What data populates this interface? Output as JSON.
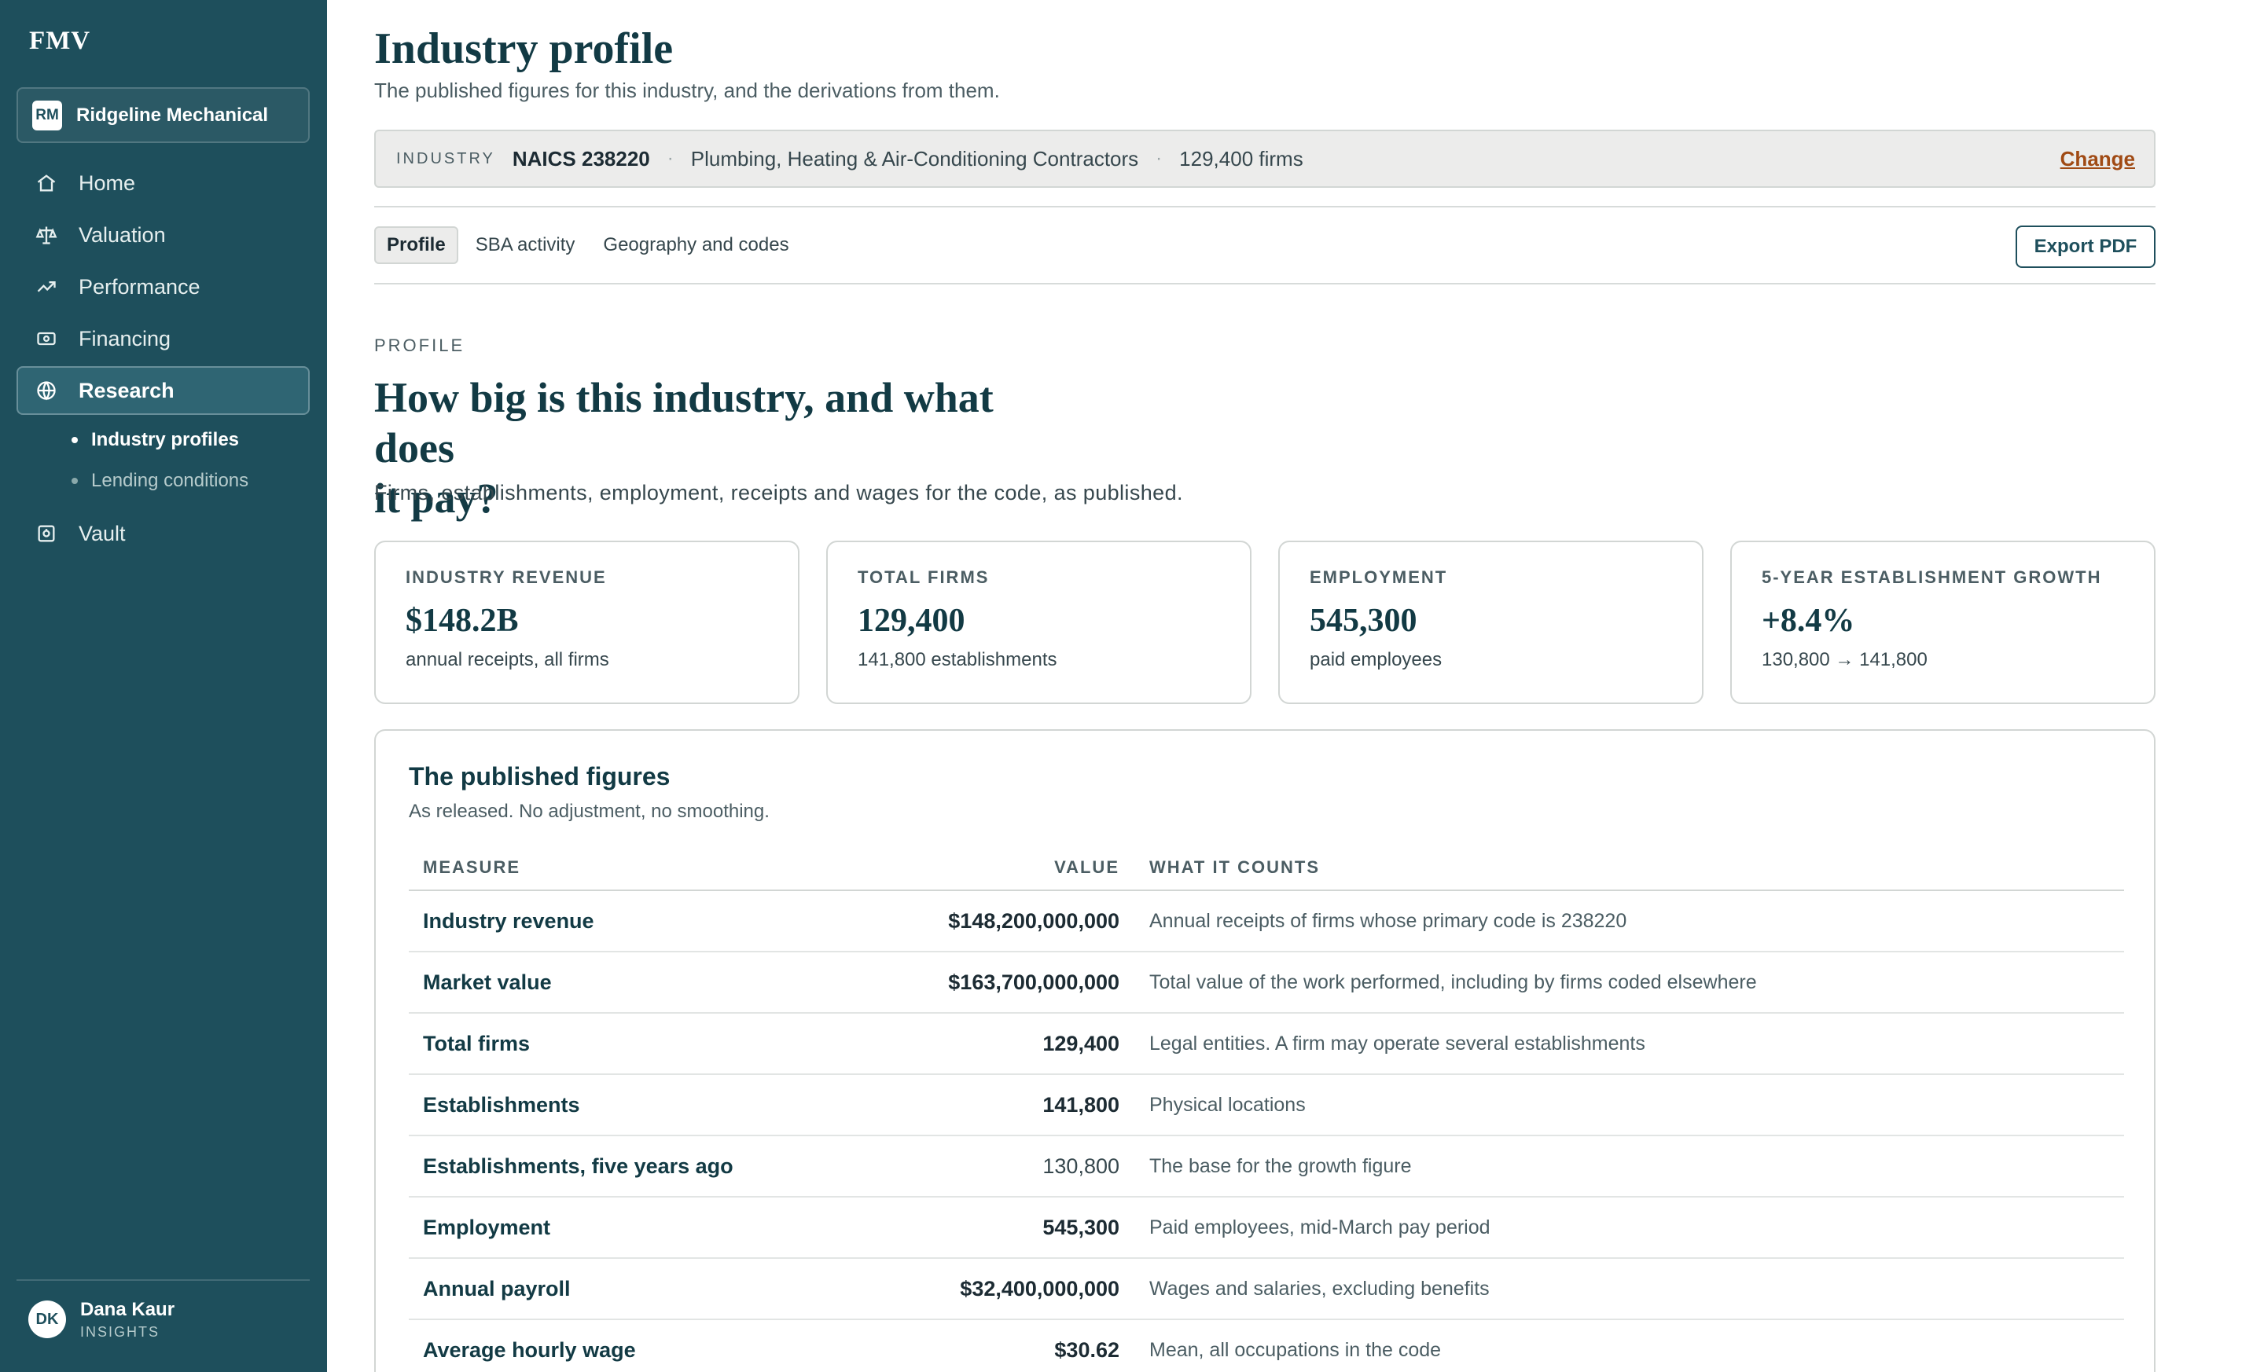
{
  "app": {
    "brand": "FMV"
  },
  "org": {
    "initials": "RM",
    "name": "Ridgeline Mechanical"
  },
  "nav": {
    "items": [
      {
        "label": "Home",
        "icon": "home-icon"
      },
      {
        "label": "Valuation",
        "icon": "scales-icon"
      },
      {
        "label": "Performance",
        "icon": "trend-icon"
      },
      {
        "label": "Financing",
        "icon": "banknote-icon"
      },
      {
        "label": "Research",
        "icon": "globe-icon",
        "active": true
      },
      {
        "label": "Vault",
        "icon": "vault-icon"
      }
    ],
    "sub_items": [
      {
        "label": "Industry profiles",
        "active": true
      },
      {
        "label": "Lending conditions"
      }
    ]
  },
  "user": {
    "initials": "DK",
    "name": "Dana Kaur",
    "role": "INSIGHTS"
  },
  "page": {
    "title": "Industry profile",
    "subtitle": "The published figures for this industry, and the derivations from them."
  },
  "industry": {
    "label": "INDUSTRY",
    "code": "NAICS 238220",
    "name": "Plumbing, Heating & Air-Conditioning Contractors",
    "firms": "129,400 firms",
    "separator": "·",
    "change_label": "Change"
  },
  "tabs": [
    {
      "label": "Profile",
      "active": true
    },
    {
      "label": "SBA activity"
    },
    {
      "label": "Geography and codes"
    }
  ],
  "export_label": "Export PDF",
  "section": {
    "eyebrow": "PROFILE",
    "headline_line1": "How big is this industry, and what does",
    "headline_line2": "it pay?",
    "lede": "Firms, establishments, employment, receipts and wages for the code, as published."
  },
  "kpis": [
    {
      "label": "INDUSTRY REVENUE",
      "value": "$148.2B",
      "note": "annual receipts, all firms"
    },
    {
      "label": "TOTAL FIRMS",
      "value": "129,400",
      "note": "141,800 establishments"
    },
    {
      "label": "EMPLOYMENT",
      "value": "545,300",
      "note": "paid employees"
    },
    {
      "label": "5-YEAR ESTABLISHMENT GROWTH",
      "value": "+8.4%",
      "note": "130,800 → 141,800"
    }
  ],
  "figures": {
    "title": "The published figures",
    "subtitle": "As released. No adjustment, no smoothing.",
    "columns": {
      "measure": "MEASURE",
      "value": "VALUE",
      "counts": "WHAT IT COUNTS"
    },
    "rows": [
      {
        "measure": "Industry revenue",
        "value": "$148,200,000,000",
        "counts": "Annual receipts of firms whose primary code is 238220"
      },
      {
        "measure": "Market value",
        "value": "$163,700,000,000",
        "counts": "Total value of the work performed, including by firms coded elsewhere"
      },
      {
        "measure": "Total firms",
        "value": "129,400",
        "counts": "Legal entities. A firm may operate several establishments"
      },
      {
        "measure": "Establishments",
        "value": "141,800",
        "counts": "Physical locations"
      },
      {
        "measure": "Establishments, five years ago",
        "value": "130,800",
        "counts": "The base for the growth figure",
        "muted": true
      },
      {
        "measure": "Employment",
        "value": "545,300",
        "counts": "Paid employees, mid-March pay period"
      },
      {
        "measure": "Annual payroll",
        "value": "$32,400,000,000",
        "counts": "Wages and salaries, excluding benefits"
      },
      {
        "measure": "Average hourly wage",
        "value": "$30.62",
        "counts": "Mean, all occupations in the code"
      }
    ]
  }
}
